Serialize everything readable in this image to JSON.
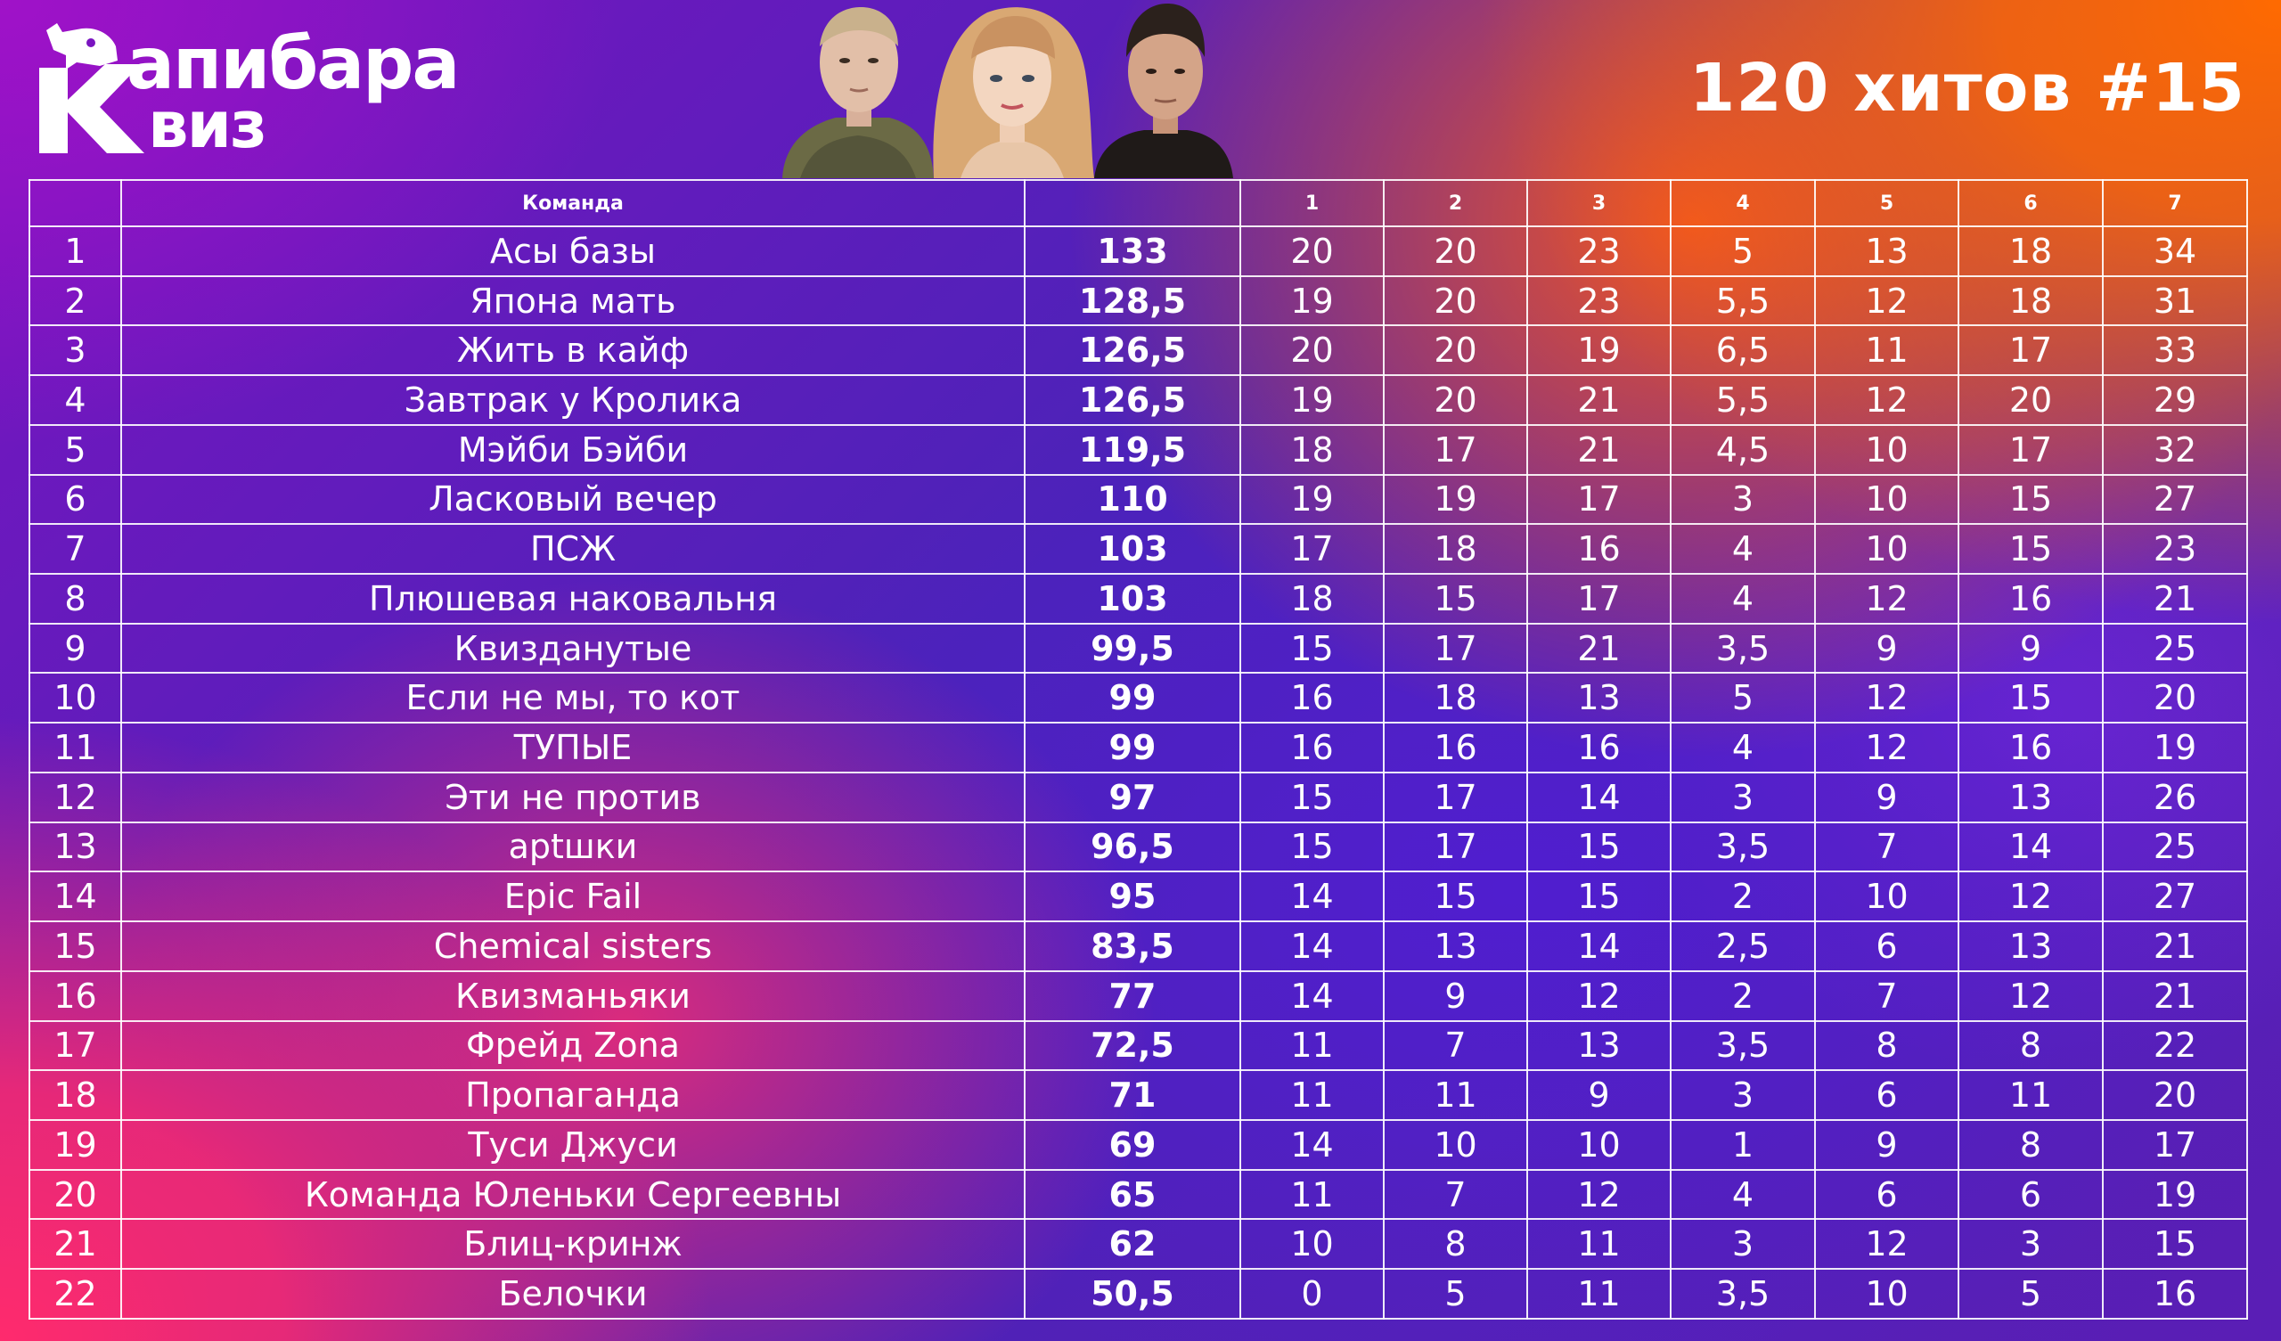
{
  "logo": {
    "line1": "апибара",
    "line2": "виз",
    "initial": "К"
  },
  "title": "120 хитов #15",
  "table": {
    "headers": {
      "place": "",
      "team": "Команда",
      "total": "",
      "rounds": [
        "1",
        "2",
        "3",
        "4",
        "5",
        "6",
        "7"
      ]
    },
    "rows": [
      {
        "place": "1",
        "team": "Асы базы",
        "total": "133",
        "rounds": [
          "20",
          "20",
          "23",
          "5",
          "13",
          "18",
          "34"
        ]
      },
      {
        "place": "2",
        "team": "Япона мать",
        "total": "128,5",
        "rounds": [
          "19",
          "20",
          "23",
          "5,5",
          "12",
          "18",
          "31"
        ]
      },
      {
        "place": "3",
        "team": "Жить в кайф",
        "total": "126,5",
        "rounds": [
          "20",
          "20",
          "19",
          "6,5",
          "11",
          "17",
          "33"
        ]
      },
      {
        "place": "4",
        "team": "Завтрак у Кролика",
        "total": "126,5",
        "rounds": [
          "19",
          "20",
          "21",
          "5,5",
          "12",
          "20",
          "29"
        ]
      },
      {
        "place": "5",
        "team": "Мэйби Бэйби",
        "total": "119,5",
        "rounds": [
          "18",
          "17",
          "21",
          "4,5",
          "10",
          "17",
          "32"
        ]
      },
      {
        "place": "6",
        "team": "Ласковый вечер",
        "total": "110",
        "rounds": [
          "19",
          "19",
          "17",
          "3",
          "10",
          "15",
          "27"
        ]
      },
      {
        "place": "7",
        "team": "ПСЖ",
        "total": "103",
        "rounds": [
          "17",
          "18",
          "16",
          "4",
          "10",
          "15",
          "23"
        ]
      },
      {
        "place": "8",
        "team": "Плюшевая наковальня",
        "total": "103",
        "rounds": [
          "18",
          "15",
          "17",
          "4",
          "12",
          "16",
          "21"
        ]
      },
      {
        "place": "9",
        "team": "Квизданутые",
        "total": "99,5",
        "rounds": [
          "15",
          "17",
          "21",
          "3,5",
          "9",
          "9",
          "25"
        ]
      },
      {
        "place": "10",
        "team": "Если не мы, то кот",
        "total": "99",
        "rounds": [
          "16",
          "18",
          "13",
          "5",
          "12",
          "15",
          "20"
        ]
      },
      {
        "place": "11",
        "team": "ТУПЫЕ",
        "total": "99",
        "rounds": [
          "16",
          "16",
          "16",
          "4",
          "12",
          "16",
          "19"
        ]
      },
      {
        "place": "12",
        "team": "Эти не против",
        "total": "97",
        "rounds": [
          "15",
          "17",
          "14",
          "3",
          "9",
          "13",
          "26"
        ]
      },
      {
        "place": "13",
        "team": "арtшки",
        "total": "96,5",
        "rounds": [
          "15",
          "17",
          "15",
          "3,5",
          "7",
          "14",
          "25"
        ]
      },
      {
        "place": "14",
        "team": "Epic Fail",
        "total": "95",
        "rounds": [
          "14",
          "15",
          "15",
          "2",
          "10",
          "12",
          "27"
        ]
      },
      {
        "place": "15",
        "team": "Chemical sisters",
        "total": "83,5",
        "rounds": [
          "14",
          "13",
          "14",
          "2,5",
          "6",
          "13",
          "21"
        ]
      },
      {
        "place": "16",
        "team": "Квизманьяки",
        "total": "77",
        "rounds": [
          "14",
          "9",
          "12",
          "2",
          "7",
          "12",
          "21"
        ]
      },
      {
        "place": "17",
        "team": "Фрейд Zona",
        "total": "72,5",
        "rounds": [
          "11",
          "7",
          "13",
          "3,5",
          "8",
          "8",
          "22"
        ]
      },
      {
        "place": "18",
        "team": "Пропаганда",
        "total": "71",
        "rounds": [
          "11",
          "11",
          "9",
          "3",
          "6",
          "11",
          "20"
        ]
      },
      {
        "place": "19",
        "team": "Туси Джуси",
        "total": "69",
        "rounds": [
          "14",
          "10",
          "10",
          "1",
          "9",
          "8",
          "17"
        ]
      },
      {
        "place": "20",
        "team": "Команда Юленьки Сергеевны",
        "total": "65",
        "rounds": [
          "11",
          "7",
          "12",
          "4",
          "6",
          "6",
          "19"
        ]
      },
      {
        "place": "21",
        "team": "Блиц-кринж",
        "total": "62",
        "rounds": [
          "10",
          "8",
          "11",
          "3",
          "12",
          "3",
          "15"
        ]
      },
      {
        "place": "22",
        "team": "Белочки",
        "total": "50,5",
        "rounds": [
          "0",
          "5",
          "11",
          "3,5",
          "10",
          "5",
          "16"
        ]
      }
    ]
  },
  "colors": {
    "orange": "#ff6a00",
    "pink": "#ff2a6d",
    "purple": "#4b23b8",
    "violet": "#a012c8",
    "white": "#ffffff"
  }
}
